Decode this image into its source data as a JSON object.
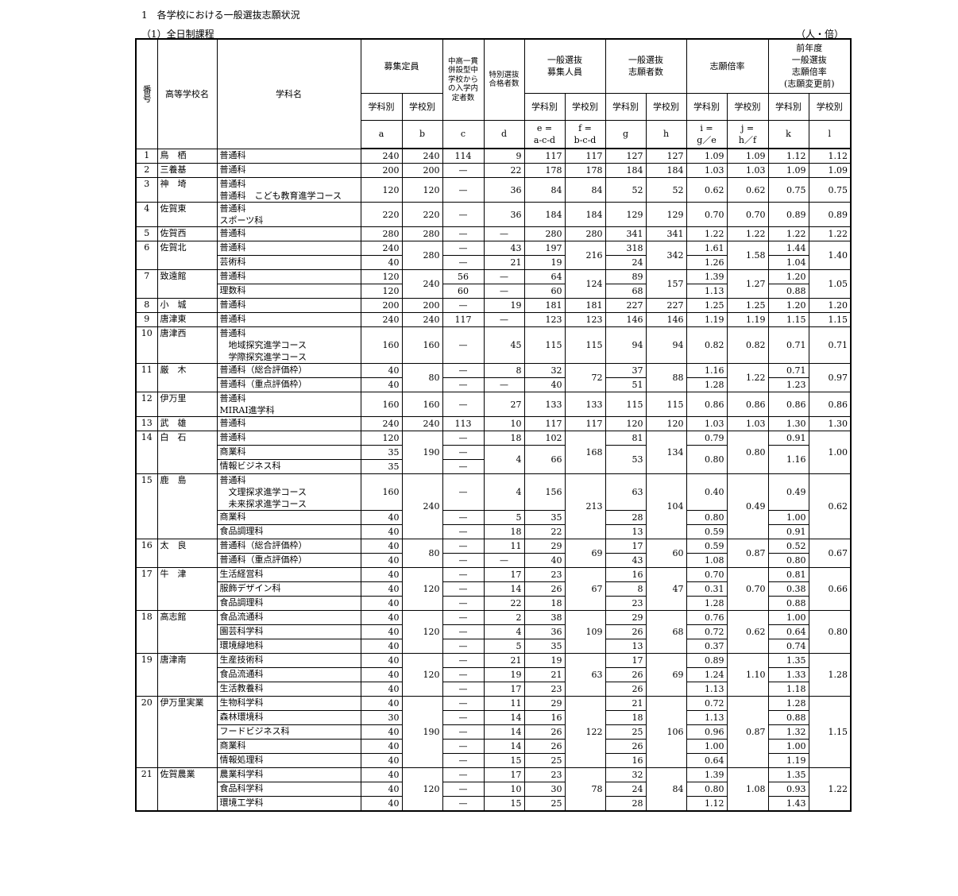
{
  "title": "1　各学校における一般選抜志願状況",
  "subtitle": "（1）全日制課程",
  "unit": "（人・倍）",
  "table": {
    "header": {
      "no": "番号",
      "school": "高等学校名",
      "dept": "学科名",
      "groups": [
        "募集定員",
        "中高一貫\n併設型中\n学校から\nの入学内\n定者数",
        "特別選抜\n合格者数",
        "一般選抜\n募集人員",
        "一般選抜\n志願者数",
        "志願倍率",
        "前年度\n一般選抜\n志願倍率\n(志願変更前)"
      ],
      "sub": [
        "学科別",
        "学校別",
        "学科別",
        "学校別",
        "学科別",
        "学校別",
        "学科別",
        "学校別",
        "学科別",
        "学校別"
      ],
      "letters": [
        "a",
        "b",
        "c",
        "d",
        "e =\na-c-d",
        "f =\nb-c-d",
        "g",
        "h",
        "i =\ng／e",
        "j =\nh／f",
        "k",
        "l"
      ]
    },
    "rows": [
      [
        "1",
        "鳥　栖",
        "普通科",
        "240",
        "240",
        "114",
        "9",
        "117",
        "117",
        "127",
        "127",
        "1.09",
        "1.09",
        "1.12",
        "1.12"
      ],
      [
        "2",
        "三養基",
        "普通科",
        "200",
        "200",
        "—",
        "22",
        "178",
        "178",
        "184",
        "184",
        "1.03",
        "1.03",
        "1.09",
        "1.09"
      ],
      [
        "3",
        "神　埼",
        "普通科\n普通科　こども教育進学コース",
        "120",
        "120",
        "—",
        "36",
        "84",
        "84",
        "52",
        "52",
        "0.62",
        "0.62",
        "0.75",
        "0.75"
      ],
      [
        "4",
        "佐賀東",
        "普通科\nスポーツ科",
        "220",
        "220",
        "—",
        "36",
        "184",
        "184",
        "129",
        "129",
        "0.70",
        "0.70",
        "0.89",
        "0.89"
      ],
      [
        "5",
        "佐賀西",
        "普通科",
        "280",
        "280",
        "—",
        "—",
        "280",
        "280",
        "341",
        "341",
        "1.22",
        "1.22",
        "1.22",
        "1.22"
      ],
      [
        "6",
        "佐賀北",
        "普通科",
        "240",
        "280",
        "—",
        "43",
        "197",
        "216",
        "318",
        "342",
        "1.61",
        "1.58",
        "1.44",
        "1.40"
      ],
      [
        null,
        null,
        "芸術科",
        "40",
        null,
        "—",
        "21",
        "19",
        null,
        "24",
        null,
        "1.26",
        null,
        "1.04",
        null
      ],
      [
        "7",
        "致遠館",
        "普通科",
        "120",
        "240",
        "56",
        "—",
        "64",
        "124",
        "89",
        "157",
        "1.39",
        "1.27",
        "1.20",
        "1.05"
      ],
      [
        null,
        null,
        "理数科",
        "120",
        null,
        "60",
        "—",
        "60",
        null,
        "68",
        null,
        "1.13",
        null,
        "0.88",
        null
      ],
      [
        "8",
        "小　城",
        "普通科",
        "200",
        "200",
        "—",
        "19",
        "181",
        "181",
        "227",
        "227",
        "1.25",
        "1.25",
        "1.20",
        "1.20"
      ],
      [
        "9",
        "唐津東",
        "普通科",
        "240",
        "240",
        "117",
        "—",
        "123",
        "123",
        "146",
        "146",
        "1.19",
        "1.19",
        "1.15",
        "1.15"
      ],
      [
        "10",
        "唐津西",
        "普通科\n　地域探究進学コース\n　学際探究進学コース",
        "160",
        "160",
        "—",
        "45",
        "115",
        "115",
        "94",
        "94",
        "0.82",
        "0.82",
        "0.71",
        "0.71"
      ],
      [
        "11",
        "厳　木",
        "普通科（総合評価枠）",
        "40",
        "80",
        "—",
        "8",
        "32",
        "72",
        "37",
        "88",
        "1.16",
        "1.22",
        "0.71",
        "0.97"
      ],
      [
        null,
        null,
        "普通科（重点評価枠）",
        "40",
        null,
        "—",
        "—",
        "40",
        null,
        "51",
        null,
        "1.28",
        null,
        "1.23",
        null
      ],
      [
        "12",
        "伊万里",
        "普通科\nMIRAI進学科",
        "160",
        "160",
        "—",
        "27",
        "133",
        "133",
        "115",
        "115",
        "0.86",
        "0.86",
        "0.86",
        "0.86"
      ],
      [
        "13",
        "武　雄",
        "普通科",
        "240",
        "240",
        "113",
        "10",
        "117",
        "117",
        "120",
        "120",
        "1.03",
        "1.03",
        "1.30",
        "1.30"
      ],
      [
        "14",
        "白　石",
        "普通科",
        "120",
        "190",
        "—",
        "18",
        "102",
        "168",
        "81",
        "134",
        "0.79",
        "0.80",
        "0.91",
        "1.00"
      ],
      [
        null,
        null,
        "商業科",
        "35",
        null,
        "—",
        "4",
        "66",
        null,
        "53",
        null,
        "0.80",
        null,
        "1.16",
        null
      ],
      [
        null,
        null,
        "情報ビジネス科",
        "35",
        null,
        "—",
        null,
        null,
        null,
        null,
        null,
        null,
        null,
        null,
        null
      ],
      [
        "15",
        "鹿　島",
        "普通科\n　文理探求進学コース\n　未来探求進学コース",
        "160",
        "240",
        "—",
        "4",
        "156",
        "213",
        "63",
        "104",
        "0.40",
        "0.49",
        "0.49",
        "0.62"
      ],
      [
        null,
        null,
        "商業科",
        "40",
        null,
        "—",
        "5",
        "35",
        null,
        "28",
        null,
        "0.80",
        null,
        "1.00",
        null
      ],
      [
        null,
        null,
        "食品調理科",
        "40",
        null,
        "—",
        "18",
        "22",
        null,
        "13",
        null,
        "0.59",
        null,
        "0.91",
        null
      ],
      [
        "16",
        "太　良",
        "普通科（総合評価枠）",
        "40",
        "80",
        "—",
        "11",
        "29",
        "69",
        "17",
        "60",
        "0.59",
        "0.87",
        "0.52",
        "0.67"
      ],
      [
        null,
        null,
        "普通科（重点評価枠）",
        "40",
        null,
        "—",
        "—",
        "40",
        null,
        "43",
        null,
        "1.08",
        null,
        "0.80",
        null
      ],
      [
        "17",
        "牛　津",
        "生活経営科",
        "40",
        "120",
        "—",
        "17",
        "23",
        "67",
        "16",
        "47",
        "0.70",
        "0.70",
        "0.81",
        "0.66"
      ],
      [
        null,
        null,
        "服飾デザイン科",
        "40",
        null,
        "—",
        "14",
        "26",
        null,
        "8",
        null,
        "0.31",
        null,
        "0.38",
        null
      ],
      [
        null,
        null,
        "食品調理科",
        "40",
        null,
        "—",
        "22",
        "18",
        null,
        "23",
        null,
        "1.28",
        null,
        "0.88",
        null
      ],
      [
        "18",
        "高志館",
        "食品流通科",
        "40",
        "120",
        "—",
        "2",
        "38",
        "109",
        "29",
        "68",
        "0.76",
        "0.62",
        "1.00",
        "0.80"
      ],
      [
        null,
        null,
        "園芸科学科",
        "40",
        null,
        "—",
        "4",
        "36",
        null,
        "26",
        null,
        "0.72",
        null,
        "0.64",
        null
      ],
      [
        null,
        null,
        "環境緑地科",
        "40",
        null,
        "—",
        "5",
        "35",
        null,
        "13",
        null,
        "0.37",
        null,
        "0.74",
        null
      ],
      [
        "19",
        "唐津南",
        "生産技術科",
        "40",
        "120",
        "—",
        "21",
        "19",
        "63",
        "17",
        "69",
        "0.89",
        "1.10",
        "1.35",
        "1.28"
      ],
      [
        null,
        null,
        "食品流通科",
        "40",
        null,
        "—",
        "19",
        "21",
        null,
        "26",
        null,
        "1.24",
        null,
        "1.33",
        null
      ],
      [
        null,
        null,
        "生活教養科",
        "40",
        null,
        "—",
        "17",
        "23",
        null,
        "26",
        null,
        "1.13",
        null,
        "1.18",
        null
      ],
      [
        "20",
        "伊万里実業",
        "生物科学科",
        "40",
        "190",
        "—",
        "11",
        "29",
        "122",
        "21",
        "106",
        "0.72",
        "0.87",
        "1.28",
        "1.15"
      ],
      [
        null,
        null,
        "森林環境科",
        "30",
        null,
        "—",
        "14",
        "16",
        null,
        "18",
        null,
        "1.13",
        null,
        "0.88",
        null
      ],
      [
        null,
        null,
        "フードビジネス科",
        "40",
        null,
        "—",
        "14",
        "26",
        null,
        "25",
        null,
        "0.96",
        null,
        "1.32",
        null
      ],
      [
        null,
        null,
        "商業科",
        "40",
        null,
        "—",
        "14",
        "26",
        null,
        "26",
        null,
        "1.00",
        null,
        "1.00",
        null
      ],
      [
        null,
        null,
        "情報処理科",
        "40",
        null,
        "—",
        "15",
        "25",
        null,
        "16",
        null,
        "0.64",
        null,
        "1.19",
        null
      ],
      [
        "21",
        "佐賀農業",
        "農業科学科",
        "40",
        "120",
        "—",
        "17",
        "23",
        "78",
        "32",
        "84",
        "1.39",
        "1.08",
        "1.35",
        "1.22"
      ],
      [
        null,
        null,
        "食品科学科",
        "40",
        null,
        "—",
        "10",
        "30",
        null,
        "24",
        null,
        "0.80",
        null,
        "0.93",
        null
      ],
      [
        null,
        null,
        "環境工学科",
        "40",
        null,
        "—",
        "15",
        "25",
        null,
        "28",
        null,
        "1.12",
        null,
        "1.43",
        null
      ]
    ]
  }
}
